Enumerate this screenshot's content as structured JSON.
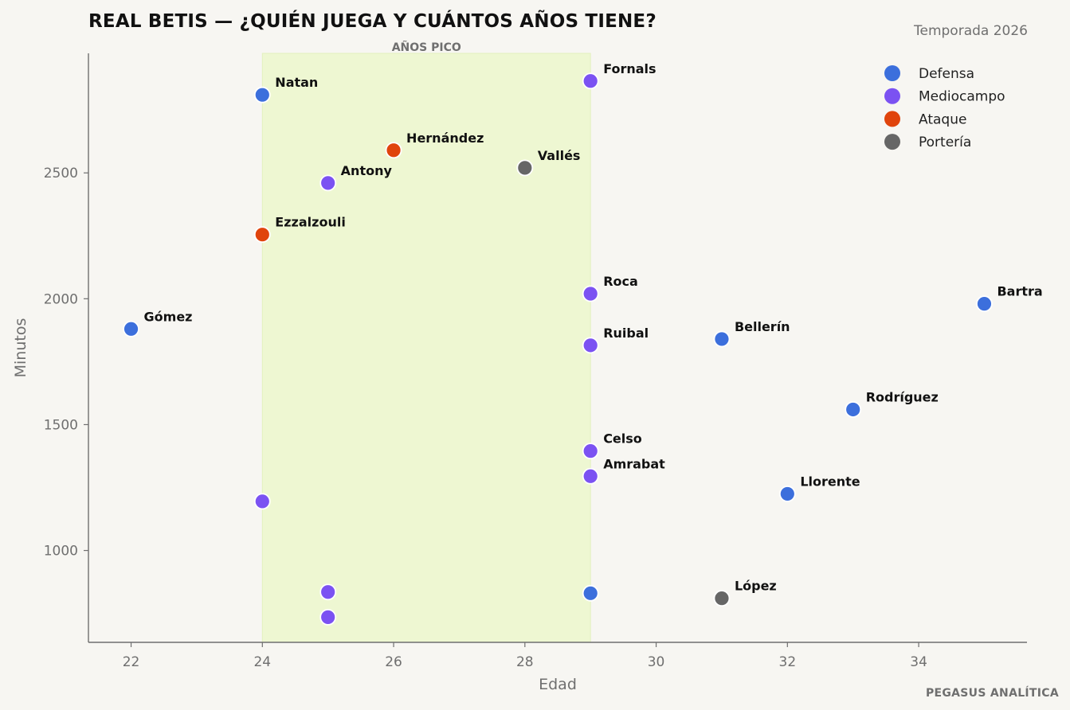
{
  "header": {
    "title": "REAL BETIS — ¿QUIÉN JUEGA Y CUÁNTOS AÑOS TIENE?",
    "season": "Temporada 2026"
  },
  "footer": {
    "brand": "PEGASUS ANALÍTICA"
  },
  "colors": {
    "background": "#f7f6f2",
    "band": "#eef7d2",
    "axis": "#6f6f6f",
    "Defensa": "#3c6fdc",
    "Mediocampo": "#7b52f2",
    "Ataque": "#e0440c",
    "Portería": "#666666"
  },
  "chart_data": {
    "type": "scatter",
    "title": "REAL BETIS — ¿QUIÉN JUEGA Y CUÁNTOS AÑOS TIENE?",
    "subtitle": "Temporada 2026",
    "xlabel": "Edad",
    "ylabel": "Minutos",
    "xlim": [
      21.35,
      35.65
    ],
    "ylim": [
      635,
      2975
    ],
    "xticks": [
      22,
      24,
      26,
      28,
      30,
      32,
      34
    ],
    "yticks": [
      1000,
      1500,
      2000,
      2500
    ],
    "grid": false,
    "legend_position": "top-right",
    "highlight_band": {
      "label": "AÑOS PICO",
      "x_from": 24,
      "x_to": 29
    },
    "series": [
      {
        "name": "Defensa",
        "points": [
          {
            "label": "Natan",
            "x": 24,
            "y": 2810
          },
          {
            "label": "Gómez",
            "x": 22,
            "y": 1880
          },
          {
            "label": "Bellerín",
            "x": 31,
            "y": 1840
          },
          {
            "label": "Bartra",
            "x": 35,
            "y": 1980
          },
          {
            "label": "Rodríguez",
            "x": 33,
            "y": 1560
          },
          {
            "label": "Llorente",
            "x": 32,
            "y": 1225
          },
          {
            "label": "",
            "x": 29,
            "y": 830
          }
        ]
      },
      {
        "name": "Mediocampo",
        "points": [
          {
            "label": "Fornals",
            "x": 29,
            "y": 2865
          },
          {
            "label": "Antony",
            "x": 25,
            "y": 2460
          },
          {
            "label": "Roca",
            "x": 29,
            "y": 2020
          },
          {
            "label": "Ruibal",
            "x": 29,
            "y": 1815
          },
          {
            "label": "Celso",
            "x": 29,
            "y": 1395
          },
          {
            "label": "Amrabat",
            "x": 29,
            "y": 1295
          },
          {
            "label": "",
            "x": 24,
            "y": 1195
          },
          {
            "label": "",
            "x": 25,
            "y": 835
          },
          {
            "label": "",
            "x": 25,
            "y": 735
          }
        ]
      },
      {
        "name": "Ataque",
        "points": [
          {
            "label": "Hernández",
            "x": 26,
            "y": 2590
          },
          {
            "label": "Ezzalzouli",
            "x": 24,
            "y": 2255
          }
        ]
      },
      {
        "name": "Portería",
        "points": [
          {
            "label": "Vallés",
            "x": 28,
            "y": 2520
          },
          {
            "label": "López",
            "x": 31,
            "y": 810
          }
        ]
      }
    ]
  }
}
